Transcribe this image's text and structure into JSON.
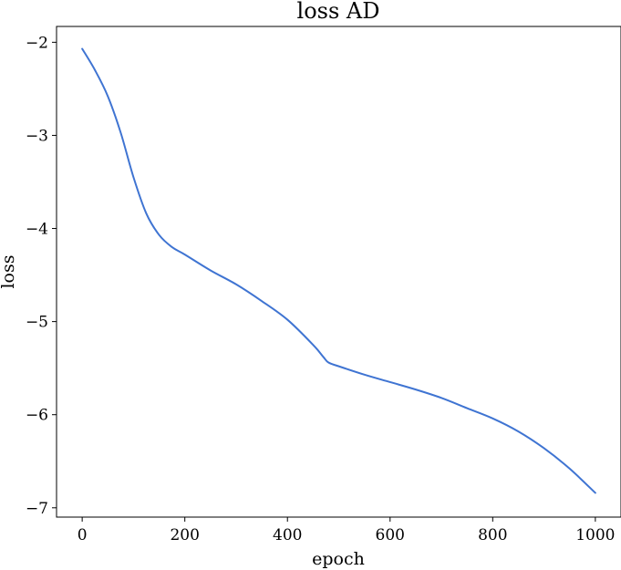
{
  "chart_data": {
    "type": "line",
    "title": "loss AD",
    "xlabel": "epoch",
    "ylabel": "loss",
    "xlim": [
      -50,
      1050
    ],
    "ylim": [
      -7.1,
      -1.83
    ],
    "x_ticks": [
      0,
      200,
      400,
      600,
      800,
      1000
    ],
    "x_tick_labels": [
      "0",
      "200",
      "400",
      "600",
      "800",
      "1000"
    ],
    "y_ticks": [
      -2,
      -3,
      -4,
      -5,
      -6,
      -7
    ],
    "y_tick_labels": [
      "−2",
      "−3",
      "−4",
      "−5",
      "−6",
      "−7"
    ],
    "grid": false,
    "series": [
      {
        "color": "#3f74d2",
        "x": [
          0,
          25,
          50,
          75,
          100,
          125,
          150,
          175,
          200,
          250,
          300,
          350,
          400,
          450,
          470,
          480,
          500,
          550,
          600,
          650,
          700,
          750,
          800,
          850,
          900,
          950,
          1000
        ],
        "y": [
          -2.07,
          -2.3,
          -2.58,
          -2.97,
          -3.45,
          -3.84,
          -4.07,
          -4.2,
          -4.28,
          -4.45,
          -4.6,
          -4.78,
          -4.98,
          -5.25,
          -5.38,
          -5.44,
          -5.48,
          -5.57,
          -5.65,
          -5.73,
          -5.82,
          -5.93,
          -6.04,
          -6.18,
          -6.36,
          -6.58,
          -6.84
        ]
      }
    ]
  }
}
